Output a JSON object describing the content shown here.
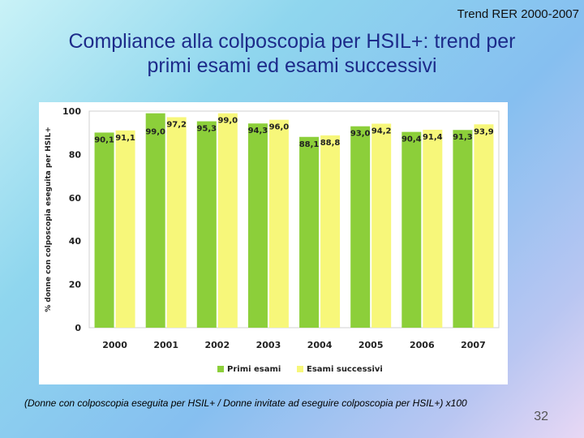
{
  "header": {
    "trend": "Trend RER 2000-2007"
  },
  "title": {
    "line1": "Compliance alla colposcopia per HSIL+: trend per",
    "line2": "primi esami ed esami successivi"
  },
  "footer": {
    "note": "(Donne con colposcopia eseguita per HSIL+ / Donne invitate ad eseguire colposcopia per HSIL+) x100",
    "slide_number": "32"
  },
  "chart_data": {
    "type": "bar",
    "title": "",
    "xlabel": "",
    "ylabel": "% donne con colposcopia eseguita per HSIL+",
    "ylim": [
      0,
      100
    ],
    "yticks": [
      0,
      20,
      40,
      60,
      80,
      100
    ],
    "grid": false,
    "legend_position": "bottom",
    "categories": [
      "2000",
      "2001",
      "2002",
      "2003",
      "2004",
      "2005",
      "2006",
      "2007"
    ],
    "series": [
      {
        "name": "Primi esami",
        "color": "#8ccf3a",
        "values": [
          90.1,
          99.0,
          95.3,
          94.3,
          88.1,
          93.0,
          90.4,
          91.3
        ],
        "labels": [
          "90,1",
          "99,0",
          "95,3",
          "94,3",
          "88,1",
          "93,0",
          "90,4",
          "91,3"
        ]
      },
      {
        "name": "Esami successivi",
        "color": "#f7f77a",
        "values": [
          91.1,
          97.2,
          99.0,
          96.0,
          88.8,
          94.2,
          91.4,
          93.9
        ],
        "labels": [
          "91,1",
          "97,2",
          "99,0",
          "96,0",
          "88,8",
          "94,2",
          "91,4",
          "93,9"
        ]
      }
    ]
  }
}
